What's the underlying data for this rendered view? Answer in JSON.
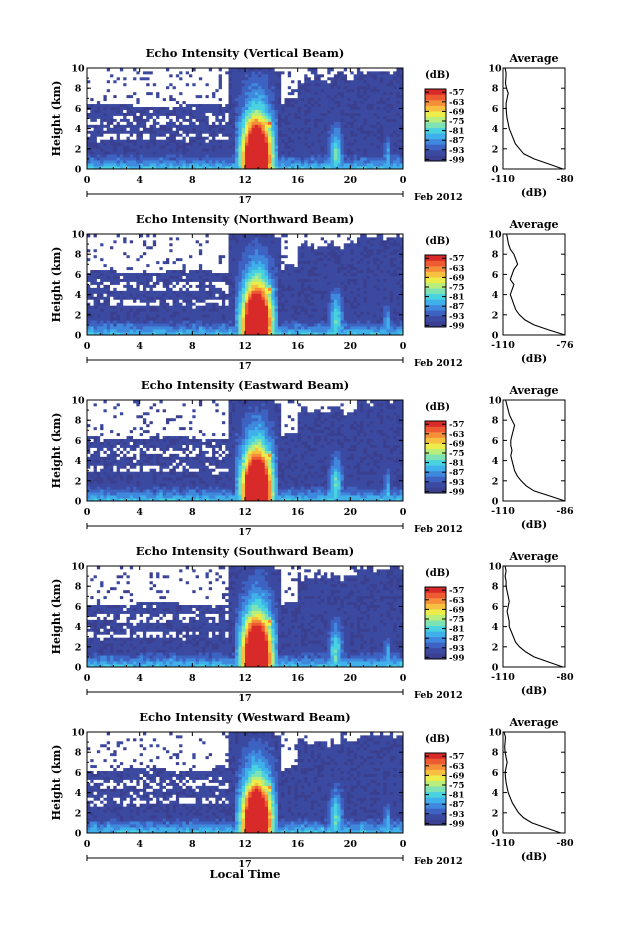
{
  "figure": {
    "xlabel": "Local Time",
    "date_label": "17",
    "month_label": "Feb 2012"
  },
  "colors": {
    "background_no_echo": "#ffffff",
    "colormap": [
      "#3a3f8f",
      "#3b4aa0",
      "#3d62c2",
      "#3f88dd",
      "#3fb0ea",
      "#49d2e0",
      "#7ee3b4",
      "#b8ee7c",
      "#ecec4a",
      "#f7c040",
      "#f58f38",
      "#ee5a32",
      "#d92a2a"
    ]
  },
  "chart_data": [
    {
      "type": "heatmap",
      "title": "Echo Intensity (Vertical Beam)",
      "ylabel": "Height (km)",
      "xlim": [
        0,
        24
      ],
      "ylim": [
        0,
        10
      ],
      "xticks": [
        "0",
        "4",
        "8",
        "12",
        "16",
        "20",
        "0"
      ],
      "yticks": [
        "0",
        "2",
        "4",
        "6",
        "8",
        "10"
      ],
      "colorbar": {
        "label": "(dB)",
        "ticks": [
          "-57",
          "-63",
          "-69",
          "-75",
          "-81",
          "-87",
          "-93",
          "-99"
        ],
        "range": [
          -100,
          -55
        ]
      },
      "profile": {
        "title": "Average",
        "xlabel": "(dB)",
        "xticks": [
          "-110",
          "-80"
        ],
        "xlim": [
          -110,
          -80
        ],
        "yticks": [
          "0",
          "2",
          "4",
          "6",
          "8",
          "10"
        ],
        "height": [
          0,
          0.5,
          1,
          1.5,
          2,
          2.5,
          3,
          3.5,
          4,
          4.5,
          5,
          5.5,
          6,
          6.5,
          7,
          7.5,
          8,
          8.5,
          9,
          9.5,
          10
        ],
        "value": [
          -81,
          -88,
          -95,
          -100,
          -102,
          -104,
          -105,
          -106,
          -107,
          -107.5,
          -108,
          -108.3,
          -108.5,
          -108.5,
          -108,
          -107.5,
          -108.3,
          -108.8,
          -108.6,
          -108.5,
          -109
        ]
      }
    },
    {
      "type": "heatmap",
      "title": "Echo Intensity (Northward Beam)",
      "ylabel": "Height (km)",
      "xlim": [
        0,
        24
      ],
      "ylim": [
        0,
        10
      ],
      "xticks": [
        "0",
        "4",
        "8",
        "12",
        "16",
        "20",
        "0"
      ],
      "yticks": [
        "0",
        "2",
        "4",
        "6",
        "8",
        "10"
      ],
      "colorbar": {
        "label": "(dB)",
        "ticks": [
          "-57",
          "-63",
          "-69",
          "-75",
          "-81",
          "-87",
          "-93",
          "-99"
        ],
        "range": [
          -100,
          -55
        ]
      },
      "profile": {
        "title": "Average",
        "xlabel": "(dB)",
        "xticks": [
          "-110",
          "-76"
        ],
        "xlim": [
          -110,
          -76
        ],
        "yticks": [
          "0",
          "2",
          "4",
          "6",
          "8",
          "10"
        ],
        "height": [
          0,
          0.5,
          1,
          1.5,
          2,
          2.5,
          3,
          3.5,
          4,
          4.5,
          5,
          5.5,
          6,
          6.5,
          7,
          7.5,
          8,
          8.5,
          9,
          9.5,
          10
        ],
        "value": [
          -76,
          -85,
          -93,
          -98,
          -101,
          -103,
          -104,
          -105,
          -106,
          -105,
          -104,
          -106,
          -105,
          -104,
          -102,
          -103,
          -104,
          -106,
          -107,
          -107.5,
          -108
        ]
      }
    },
    {
      "type": "heatmap",
      "title": "Echo Intensity (Eastward Beam)",
      "ylabel": "Height (km)",
      "xlim": [
        0,
        24
      ],
      "ylim": [
        0,
        10
      ],
      "xticks": [
        "0",
        "4",
        "8",
        "12",
        "16",
        "20",
        "0"
      ],
      "yticks": [
        "0",
        "2",
        "4",
        "6",
        "8",
        "10"
      ],
      "colorbar": {
        "label": "(dB)",
        "ticks": [
          "-57",
          "-63",
          "-69",
          "-75",
          "-81",
          "-87",
          "-93",
          "-99"
        ],
        "range": [
          -100,
          -55
        ]
      },
      "profile": {
        "title": "Average",
        "xlabel": "(dB)",
        "xticks": [
          "-110",
          "-86"
        ],
        "xlim": [
          -110,
          -86
        ],
        "yticks": [
          "0",
          "2",
          "4",
          "6",
          "8",
          "10"
        ],
        "height": [
          0,
          0.5,
          1,
          1.5,
          2,
          2.5,
          3,
          3.5,
          4,
          4.5,
          5,
          5.5,
          6,
          6.5,
          7,
          7.5,
          8,
          8.5,
          9,
          9.5,
          10
        ],
        "value": [
          -86,
          -92,
          -98,
          -101,
          -103,
          -104.5,
          -105.5,
          -106,
          -106.5,
          -107,
          -106.5,
          -107,
          -107,
          -106.5,
          -106,
          -105.5,
          -106.5,
          -107.5,
          -108,
          -108.5,
          -109
        ]
      }
    },
    {
      "type": "heatmap",
      "title": "Echo Intensity (Southward Beam)",
      "ylabel": "Height (km)",
      "xlim": [
        0,
        24
      ],
      "ylim": [
        0,
        10
      ],
      "xticks": [
        "0",
        "4",
        "8",
        "12",
        "16",
        "20",
        "0"
      ],
      "yticks": [
        "0",
        "2",
        "4",
        "6",
        "8",
        "10"
      ],
      "colorbar": {
        "label": "(dB)",
        "ticks": [
          "-57",
          "-63",
          "-69",
          "-75",
          "-81",
          "-87",
          "-93",
          "-99"
        ],
        "range": [
          -100,
          -55
        ]
      },
      "profile": {
        "title": "Average",
        "xlabel": "(dB)",
        "xticks": [
          "-110",
          "-80"
        ],
        "xlim": [
          -110,
          -80
        ],
        "yticks": [
          "0",
          "2",
          "4",
          "6",
          "8",
          "10"
        ],
        "height": [
          0,
          0.5,
          1,
          1.5,
          2,
          2.5,
          3,
          3.5,
          4,
          4.5,
          5,
          5.5,
          6,
          6.5,
          7,
          7.5,
          8,
          8.5,
          9,
          9.5,
          10
        ],
        "value": [
          -81,
          -88,
          -95,
          -99,
          -102,
          -104,
          -105,
          -106,
          -107,
          -107,
          -107.5,
          -108,
          -107.5,
          -107,
          -107.5,
          -108,
          -108.5,
          -108.5,
          -109,
          -108.5,
          -109
        ]
      }
    },
    {
      "type": "heatmap",
      "title": "Echo Intensity (Westward Beam)",
      "ylabel": "Height (km)",
      "xlim": [
        0,
        24
      ],
      "ylim": [
        0,
        10
      ],
      "xticks": [
        "0",
        "4",
        "8",
        "12",
        "16",
        "20",
        "0"
      ],
      "yticks": [
        "0",
        "2",
        "4",
        "6",
        "8",
        "10"
      ],
      "colorbar": {
        "label": "(dB)",
        "ticks": [
          "-57",
          "-63",
          "-69",
          "-75",
          "-81",
          "-87",
          "-93",
          "-99"
        ],
        "range": [
          -100,
          -55
        ]
      },
      "profile": {
        "title": "Average",
        "xlabel": "(dB)",
        "xticks": [
          "-110",
          "-80"
        ],
        "xlim": [
          -110,
          -80
        ],
        "yticks": [
          "0",
          "2",
          "4",
          "6",
          "8",
          "10"
        ],
        "height": [
          0,
          0.5,
          1,
          1.5,
          2,
          2.5,
          3,
          3.5,
          4,
          4.5,
          5,
          5.5,
          6,
          6.5,
          7,
          7.5,
          8,
          8.5,
          9,
          9.5,
          10
        ],
        "value": [
          -82,
          -89,
          -96,
          -100,
          -102.5,
          -104,
          -105.5,
          -106.5,
          -107.5,
          -108,
          -108.5,
          -108.8,
          -109,
          -108.5,
          -108,
          -108.5,
          -109,
          -109.2,
          -109,
          -108.8,
          -109.5
        ]
      }
    }
  ]
}
